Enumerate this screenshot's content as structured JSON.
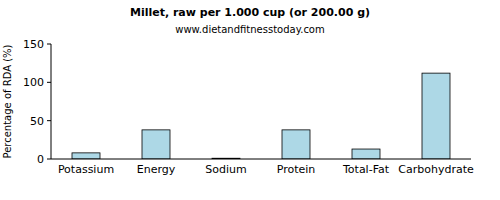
{
  "chart_data": {
    "type": "bar",
    "title": "Millet, raw per 1.000 cup (or 200.00 g)",
    "subtitle": "www.dietandfitnesstoday.com",
    "y_label": "Percentage of RDA (%)",
    "categories": [
      "Potassium",
      "Energy",
      "Sodium",
      "Protein",
      "Total-Fat",
      "Carbohydrate"
    ],
    "values": [
      8,
      38,
      1,
      38,
      13,
      112
    ],
    "color": "#add8e6",
    "ylim": [
      0,
      150
    ],
    "yticks": [
      0,
      50,
      100,
      150
    ],
    "grid": false
  }
}
